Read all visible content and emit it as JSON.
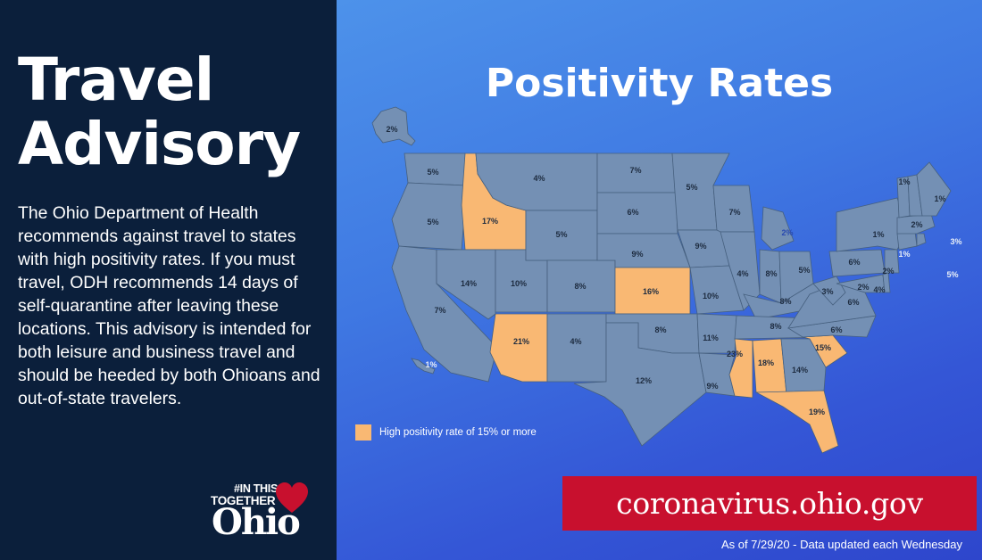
{
  "title": {
    "line1": "Travel",
    "line2": "Advisory"
  },
  "advisory_text": "The Ohio Department of Health recommends against travel to states with high positivity rates. If you must travel, ODH recommends 14 days of self-quarantine after leaving these locations. This advisory is intended for both leisure and business travel and should be heeded by both Ohioans and out-of-state travelers.",
  "logo": {
    "hashtag": "#IN THIS",
    "together": "TOGETHER",
    "ohio": "Ohio"
  },
  "map_title": "Positivity Rates",
  "legend": {
    "label": "High positivity rate of 15% or more",
    "color": "#f9b873"
  },
  "url": "coronavirus.ohio.gov",
  "footnote": "As of 7/29/20 - Data updated each Wednesday",
  "colors": {
    "left_bg": "#0b1f3b",
    "state_fill": "#7490b4",
    "high_fill": "#f9b873",
    "banner": "#c8102e"
  },
  "states": [
    {
      "id": "AK",
      "rate": "2%"
    },
    {
      "id": "HI",
      "rate": "1%"
    },
    {
      "id": "WA",
      "rate": "5%"
    },
    {
      "id": "OR",
      "rate": "5%"
    },
    {
      "id": "CA",
      "rate": "7%"
    },
    {
      "id": "ID",
      "rate": "17%",
      "high": true
    },
    {
      "id": "NV",
      "rate": "14%"
    },
    {
      "id": "UT",
      "rate": "10%"
    },
    {
      "id": "AZ",
      "rate": "21%",
      "high": true
    },
    {
      "id": "MT",
      "rate": "4%"
    },
    {
      "id": "WY",
      "rate": "5%"
    },
    {
      "id": "CO",
      "rate": "8%"
    },
    {
      "id": "NM",
      "rate": "4%"
    },
    {
      "id": "ND",
      "rate": "7%"
    },
    {
      "id": "SD",
      "rate": "6%"
    },
    {
      "id": "NE",
      "rate": "9%"
    },
    {
      "id": "KS",
      "rate": "16%",
      "high": true
    },
    {
      "id": "OK",
      "rate": "8%"
    },
    {
      "id": "TX",
      "rate": "12%"
    },
    {
      "id": "MN",
      "rate": "5%"
    },
    {
      "id": "IA",
      "rate": "9%"
    },
    {
      "id": "MO",
      "rate": "10%"
    },
    {
      "id": "AR",
      "rate": "11%"
    },
    {
      "id": "LA",
      "rate": "9%"
    },
    {
      "id": "WI",
      "rate": "7%"
    },
    {
      "id": "IL",
      "rate": "4%"
    },
    {
      "id": "MI",
      "rate": "2%"
    },
    {
      "id": "IN",
      "rate": "8%"
    },
    {
      "id": "OH",
      "rate": "5%"
    },
    {
      "id": "KY",
      "rate": "8%"
    },
    {
      "id": "TN",
      "rate": "8%"
    },
    {
      "id": "MS",
      "rate": "23%",
      "high": true
    },
    {
      "id": "AL",
      "rate": "18%",
      "high": true
    },
    {
      "id": "GA",
      "rate": "14%"
    },
    {
      "id": "FL",
      "rate": "19%",
      "high": true
    },
    {
      "id": "SC",
      "rate": "15%",
      "high": true
    },
    {
      "id": "NC",
      "rate": "6%"
    },
    {
      "id": "VA",
      "rate": "6%"
    },
    {
      "id": "WV",
      "rate": "3%"
    },
    {
      "id": "PA",
      "rate": "6%"
    },
    {
      "id": "NY",
      "rate": "1%"
    },
    {
      "id": "MD",
      "rate": "2%"
    },
    {
      "id": "DE",
      "rate": "4%"
    },
    {
      "id": "NJ",
      "rate": "2%"
    },
    {
      "id": "CT",
      "rate": "1%"
    },
    {
      "id": "RI",
      "rate": "3%"
    },
    {
      "id": "MA",
      "rate": "2%"
    },
    {
      "id": "VT",
      "rate": "1%"
    },
    {
      "id": "NH",
      "rate": "5%"
    },
    {
      "id": "ME",
      "rate": "1%"
    }
  ]
}
